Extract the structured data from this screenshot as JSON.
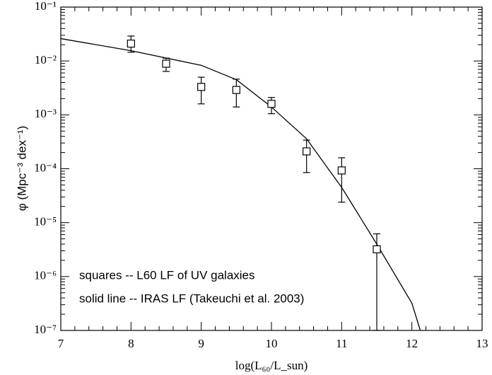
{
  "chart_data": {
    "type": "scatter",
    "x_label": "log(L₆₀/L_sun)",
    "y_label": "φ (Mpc⁻³ dex⁻¹)",
    "annotations": [
      "squares -- L60 LF of UV galaxies",
      "solid line -- IRAS LF (Takeuchi et al. 2003)"
    ],
    "log_y": true,
    "xlim": [
      7,
      13
    ],
    "xticks": [
      7,
      8,
      9,
      10,
      11,
      12,
      13
    ],
    "ylim": [
      1e-07,
      0.1
    ],
    "yticks": [
      {
        "value": 1e-07,
        "label": "10⁻⁷"
      },
      {
        "value": 1e-06,
        "label": "10⁻⁶"
      },
      {
        "value": 1e-05,
        "label": "10⁻⁵"
      },
      {
        "value": 0.0001,
        "label": "10⁻⁴"
      },
      {
        "value": 0.001,
        "label": "10⁻³"
      },
      {
        "value": 0.01,
        "label": "10⁻²"
      },
      {
        "value": 0.1,
        "label": "10⁻¹"
      }
    ],
    "points": {
      "x": [
        8,
        8.5,
        9,
        9.5,
        10,
        10.5,
        11,
        11.5
      ],
      "values": [
        0.021,
        0.0089,
        0.0033,
        0.0029,
        0.0016,
        0.00021,
        9.3e-05,
        3.2e-06
      ],
      "lower": [
        0.0145,
        0.0064,
        0.0016,
        0.0014,
        0.00105,
        8.5e-05,
        2.4e-05,
        1e-07
      ],
      "upper": [
        0.029,
        0.0113,
        0.005,
        0.0046,
        0.0021,
        0.00034,
        0.00016,
        6.2e-06
      ],
      "color": "#000000"
    },
    "line": {
      "x": [
        7,
        8,
        9,
        9.5,
        10,
        10.5,
        11,
        11.5,
        12,
        12.12
      ],
      "values": [
        0.026,
        0.0155,
        0.0083,
        0.0045,
        0.0014,
        0.00036,
        4.5e-05,
        4e-06,
        3.2e-07,
        1e-07
      ],
      "color": "#000000"
    }
  }
}
